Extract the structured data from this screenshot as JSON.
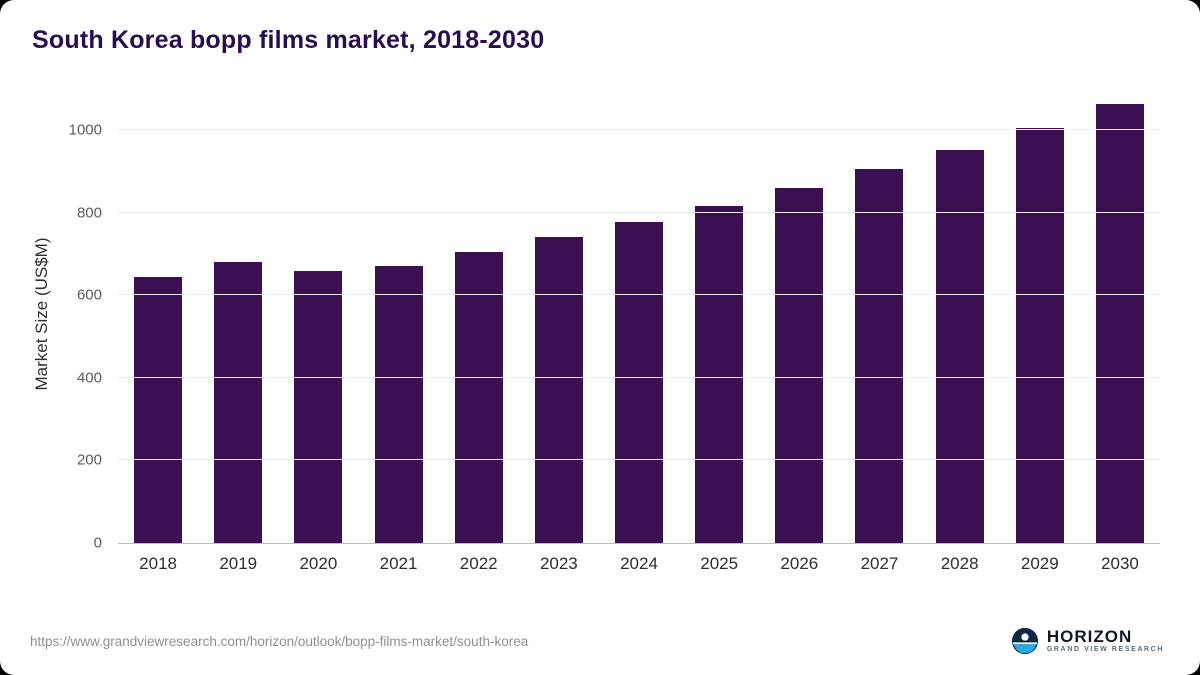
{
  "page": {
    "title": "South Korea bopp films market, 2018-2030",
    "source_url": "https://www.grandviewresearch.com/horizon/outlook/bopp-films-market/south-korea",
    "brand": {
      "name": "HORIZON",
      "tagline": "GRAND VIEW RESEARCH"
    }
  },
  "chart_data": {
    "type": "bar",
    "title": "South Korea bopp films market, 2018-2030",
    "categories": [
      "2018",
      "2019",
      "2020",
      "2021",
      "2022",
      "2023",
      "2024",
      "2025",
      "2026",
      "2027",
      "2028",
      "2029",
      "2030"
    ],
    "values": [
      645,
      681,
      659,
      671,
      705,
      741,
      777,
      816,
      859,
      905,
      953,
      1006,
      1063
    ],
    "xlabel": "",
    "ylabel": "Market Size (US$M)",
    "ylim": [
      0,
      1100
    ],
    "yticks": [
      0,
      200,
      400,
      600,
      800,
      1000
    ],
    "bar_color": "#3b1053",
    "grid": true,
    "legend": false
  }
}
